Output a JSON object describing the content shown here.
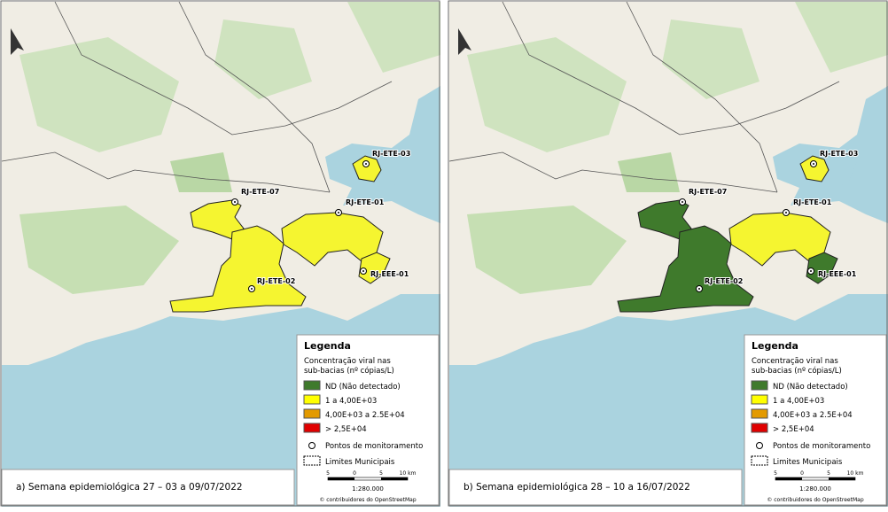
{
  "panels": [
    {
      "caption": "a) Semana epidemiológica 27 – 03 a 09/07/2022",
      "stations": [
        {
          "label": "RJ-ETE-03",
          "color": "#f5f530"
        },
        {
          "label": "RJ-ETE-07",
          "color": "#f5f530"
        },
        {
          "label": "RJ-ETE-01",
          "color": "#f5f530"
        },
        {
          "label": "RJ-ETE-02",
          "color": "#f5f530"
        },
        {
          "label": "RJ-EEE-01",
          "color": "#f5f530"
        }
      ]
    },
    {
      "caption": "b) Semana epidemiológica 28 – 10 a 16/07/2022",
      "stations": [
        {
          "label": "RJ-ETE-03",
          "color": "#f5f530"
        },
        {
          "label": "RJ-ETE-07",
          "color": "#3f7a2c"
        },
        {
          "label": "RJ-ETE-01",
          "color": "#f5f530"
        },
        {
          "label": "RJ-ETE-02",
          "color": "#3f7a2c"
        },
        {
          "label": "RJ-EEE-01",
          "color": "#3f7a2c"
        }
      ]
    }
  ],
  "legend": {
    "title": "Legenda",
    "subtitle": [
      "Concentração viral nas",
      "sub-bacias (nº cópias/L)"
    ],
    "items": [
      {
        "label": "ND (Não detectado)",
        "color": "#3f7a2c"
      },
      {
        "label": "1 a 4,00E+03",
        "color": "#ffff00"
      },
      {
        "label": "4,00E+03 a 2.5E+04",
        "color": "#e39a00"
      },
      {
        "label": "> 2,5E+04",
        "color": "#e00000"
      }
    ],
    "points": "Pontos de monitoramento",
    "limits": "Limites Municipais",
    "scale_labels": [
      "5",
      "0",
      "5",
      "10 km"
    ],
    "scale": "1:280.000",
    "credit": "© contribuidores do OpenStreetMap"
  }
}
